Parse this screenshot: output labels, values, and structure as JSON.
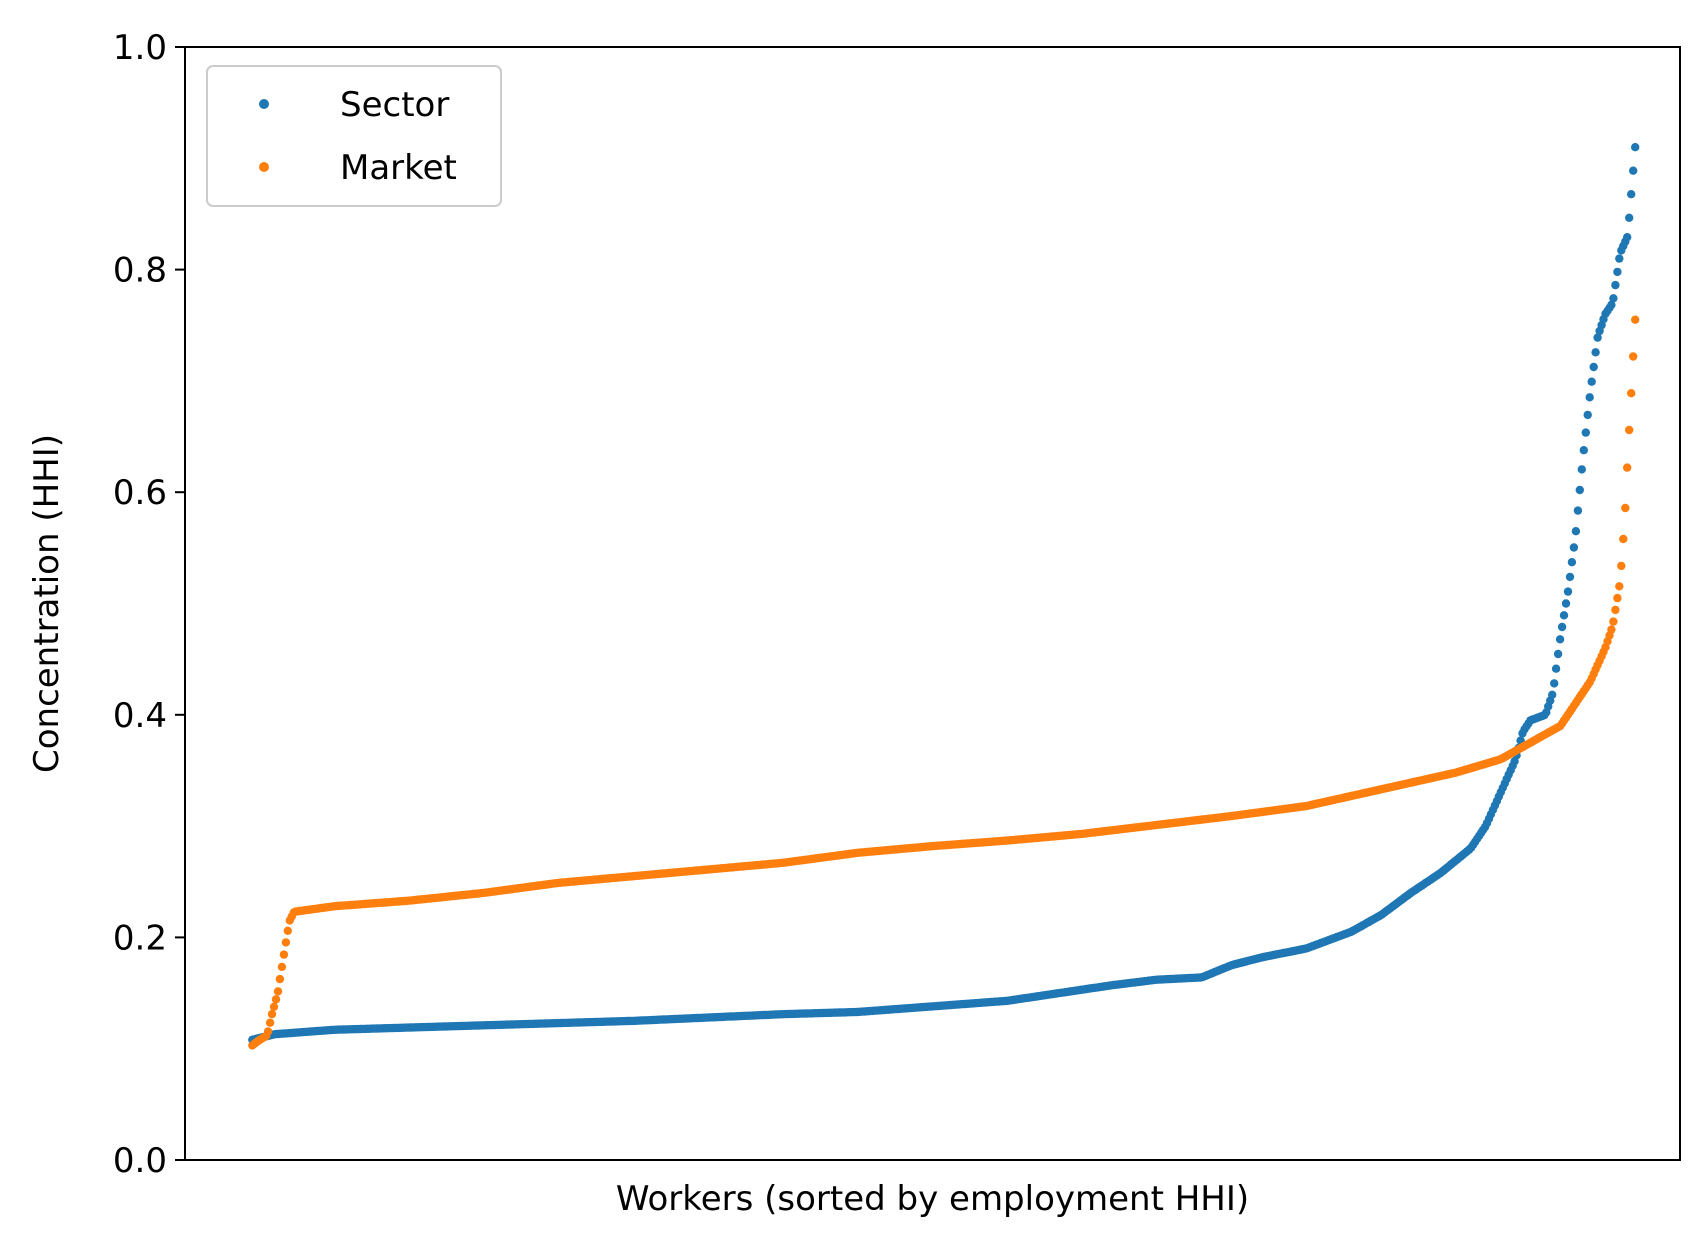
{
  "chart_data": {
    "type": "scatter",
    "xlabel": "Workers (sorted by employment HHI)",
    "ylabel": "Concentration (HHI)",
    "xlim": [
      0,
      1
    ],
    "ylim": [
      0,
      1.0
    ],
    "yticks": [
      "0.0",
      "0.2",
      "0.4",
      "0.6",
      "0.8",
      "1.0"
    ],
    "xticks": [],
    "grid": false,
    "legend_position": "top-left",
    "series": [
      {
        "name": "Sector",
        "color": "#1f77b4",
        "curve": [
          [
            0.045,
            0.108
          ],
          [
            0.06,
            0.113
          ],
          [
            0.1,
            0.117
          ],
          [
            0.2,
            0.121
          ],
          [
            0.3,
            0.125
          ],
          [
            0.35,
            0.128
          ],
          [
            0.4,
            0.131
          ],
          [
            0.45,
            0.133
          ],
          [
            0.5,
            0.138
          ],
          [
            0.55,
            0.143
          ],
          [
            0.6,
            0.153
          ],
          [
            0.62,
            0.157
          ],
          [
            0.65,
            0.162
          ],
          [
            0.68,
            0.164
          ],
          [
            0.7,
            0.175
          ],
          [
            0.72,
            0.182
          ],
          [
            0.75,
            0.19
          ],
          [
            0.78,
            0.205
          ],
          [
            0.8,
            0.22
          ],
          [
            0.82,
            0.24
          ],
          [
            0.84,
            0.258
          ],
          [
            0.86,
            0.28
          ],
          [
            0.87,
            0.3
          ],
          [
            0.88,
            0.33
          ],
          [
            0.89,
            0.36
          ],
          [
            0.895,
            0.385
          ],
          [
            0.9,
            0.395
          ],
          [
            0.91,
            0.4
          ],
          [
            0.915,
            0.42
          ],
          [
            0.92,
            0.47
          ],
          [
            0.925,
            0.51
          ],
          [
            0.93,
            0.56
          ],
          [
            0.935,
            0.63
          ],
          [
            0.94,
            0.69
          ],
          [
            0.945,
            0.74
          ],
          [
            0.95,
            0.76
          ],
          [
            0.955,
            0.77
          ],
          [
            0.96,
            0.815
          ],
          [
            0.965,
            0.83
          ],
          [
            0.97,
            0.91
          ]
        ]
      },
      {
        "name": "Market",
        "color": "#ff7f0e",
        "curve": [
          [
            0.045,
            0.103
          ],
          [
            0.05,
            0.108
          ],
          [
            0.055,
            0.112
          ],
          [
            0.058,
            0.13
          ],
          [
            0.062,
            0.15
          ],
          [
            0.065,
            0.175
          ],
          [
            0.068,
            0.2
          ],
          [
            0.07,
            0.215
          ],
          [
            0.073,
            0.223
          ],
          [
            0.1,
            0.228
          ],
          [
            0.15,
            0.233
          ],
          [
            0.2,
            0.24
          ],
          [
            0.25,
            0.249
          ],
          [
            0.3,
            0.255
          ],
          [
            0.35,
            0.261
          ],
          [
            0.4,
            0.267
          ],
          [
            0.45,
            0.276
          ],
          [
            0.5,
            0.282
          ],
          [
            0.55,
            0.287
          ],
          [
            0.6,
            0.293
          ],
          [
            0.65,
            0.301
          ],
          [
            0.7,
            0.309
          ],
          [
            0.75,
            0.318
          ],
          [
            0.8,
            0.333
          ],
          [
            0.85,
            0.348
          ],
          [
            0.88,
            0.36
          ],
          [
            0.9,
            0.375
          ],
          [
            0.92,
            0.39
          ],
          [
            0.93,
            0.41
          ],
          [
            0.94,
            0.43
          ],
          [
            0.95,
            0.46
          ],
          [
            0.955,
            0.48
          ],
          [
            0.96,
            0.52
          ],
          [
            0.963,
            0.575
          ],
          [
            0.965,
            0.63
          ],
          [
            0.968,
            0.705
          ],
          [
            0.97,
            0.755
          ]
        ]
      }
    ]
  }
}
